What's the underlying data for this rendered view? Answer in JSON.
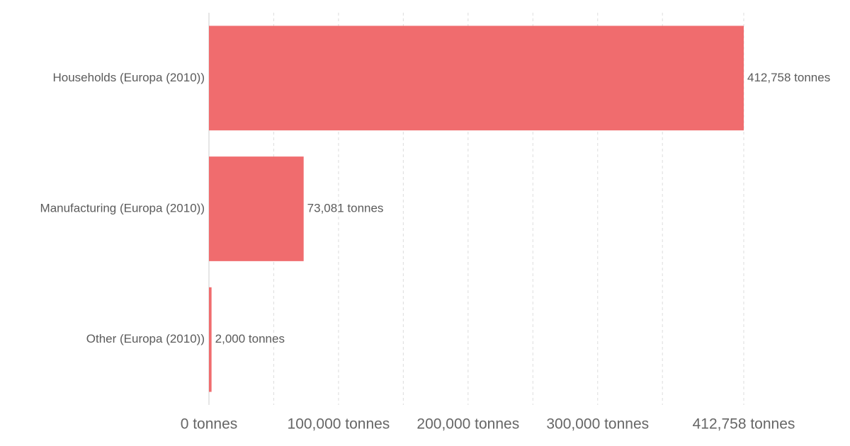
{
  "chart_data": {
    "type": "bar",
    "orientation": "horizontal",
    "categories": [
      "Households (Europa (2010))",
      "Manufacturing (Europa (2010))",
      "Other (Europa (2010))"
    ],
    "values": [
      412758,
      73081,
      2000
    ],
    "value_labels": [
      "412,758 tonnes",
      "73,081 tonnes",
      "2,000 tonnes"
    ],
    "unit": "tonnes",
    "xlim": [
      0,
      412758
    ],
    "x_ticks": [
      0,
      50000,
      100000,
      150000,
      200000,
      250000,
      300000,
      350000,
      412758
    ],
    "x_tick_labels": [
      {
        "value": 0,
        "label": "0 tonnes"
      },
      {
        "value": 100000,
        "label": "100,000 tonnes"
      },
      {
        "value": 200000,
        "label": "200,000 tonnes"
      },
      {
        "value": 300000,
        "label": "300,000 tonnes"
      },
      {
        "value": 412758,
        "label": "412,758 tonnes"
      }
    ],
    "grid": true,
    "legend": "none",
    "bar_color": "#f06c6e",
    "title": "",
    "xlabel": "",
    "ylabel": ""
  }
}
